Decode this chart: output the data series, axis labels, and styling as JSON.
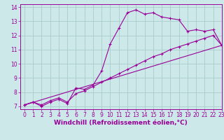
{
  "xlabel": "Windchill (Refroidissement éolien,°C)",
  "background_color": "#cce8e8",
  "line_color": "#990099",
  "grid_color": "#aacccc",
  "curve1_x": [
    0,
    1,
    2,
    3,
    4,
    5,
    6,
    7,
    8,
    9,
    10,
    11,
    12,
    13,
    14,
    15,
    16,
    17,
    18,
    19,
    20,
    21,
    22,
    23
  ],
  "curve1_y": [
    7.1,
    7.3,
    7.0,
    7.3,
    7.5,
    7.2,
    8.3,
    8.2,
    8.5,
    9.5,
    11.4,
    12.5,
    13.6,
    13.8,
    13.5,
    13.6,
    13.3,
    13.2,
    13.1,
    12.3,
    12.4,
    12.3,
    12.4,
    11.3
  ],
  "curve2_x": [
    0,
    1,
    2,
    3,
    4,
    5,
    6,
    7,
    8,
    9,
    10,
    11,
    12,
    13,
    14,
    15,
    16,
    17,
    18,
    19,
    20,
    21,
    22,
    23
  ],
  "curve2_y": [
    7.1,
    7.3,
    7.1,
    7.4,
    7.6,
    7.3,
    7.9,
    8.1,
    8.4,
    8.7,
    9.0,
    9.3,
    9.6,
    9.9,
    10.2,
    10.5,
    10.7,
    11.0,
    11.2,
    11.4,
    11.6,
    11.8,
    12.0,
    11.3
  ],
  "curve3_x": [
    0,
    23
  ],
  "curve3_y": [
    7.1,
    11.3
  ],
  "xlim": [
    -0.5,
    23
  ],
  "ylim": [
    6.8,
    14.2
  ],
  "xticks": [
    0,
    1,
    2,
    3,
    4,
    5,
    6,
    7,
    8,
    9,
    10,
    11,
    12,
    13,
    14,
    15,
    16,
    17,
    18,
    19,
    20,
    21,
    22,
    23
  ],
  "yticks": [
    7,
    8,
    9,
    10,
    11,
    12,
    13,
    14
  ],
  "tick_fontsize": 5.5,
  "xlabel_fontsize": 6.5
}
